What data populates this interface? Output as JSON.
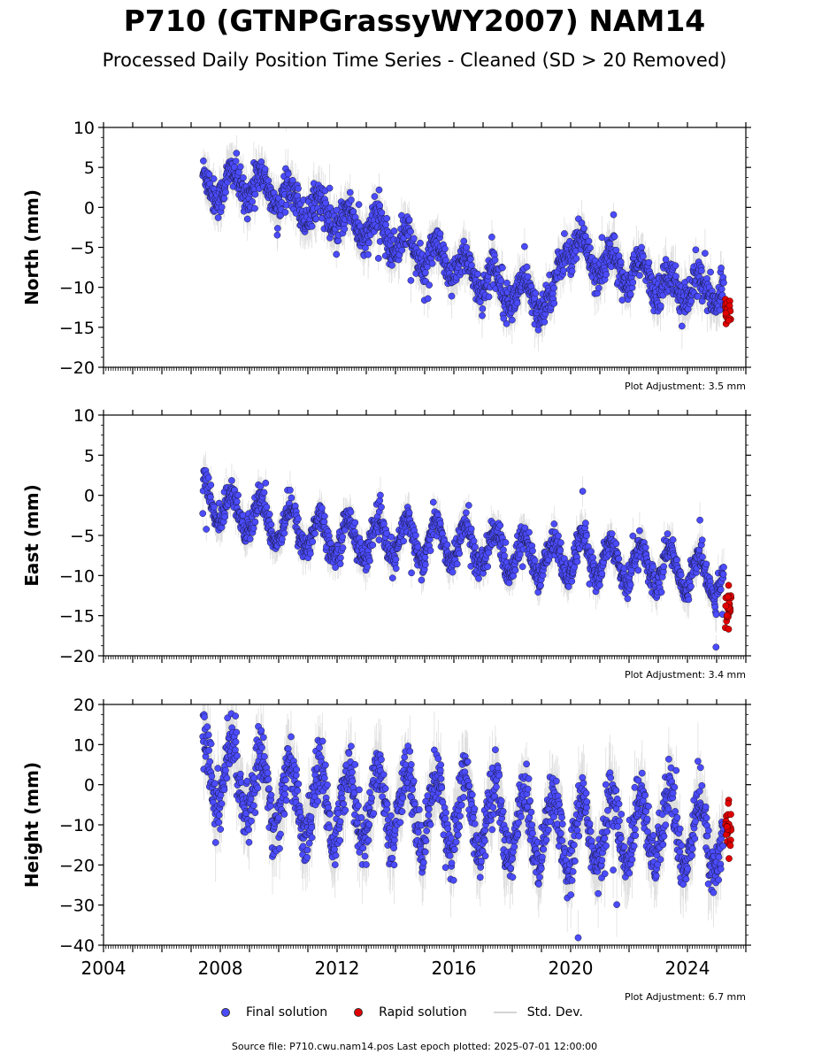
{
  "chart_data": {
    "type": "scatter",
    "title": "P710 (GTNPGrassyWY2007) NAM14",
    "subtitle": "Processed Daily Position Time Series - Cleaned (SD > 20 Removed)",
    "colors": {
      "final": "#4b4bff",
      "rapid": "#e00000",
      "stddev": "#b8b8b8",
      "edge": "#1a1a40"
    },
    "xlim": [
      2004,
      2026
    ],
    "x_ticks": [
      2004,
      2008,
      2012,
      2016,
      2020,
      2024
    ],
    "x_tick_labels": [
      "2004",
      "2008",
      "2012",
      "2016",
      "2020",
      "2024"
    ],
    "panels": [
      {
        "ylabel": "North (mm)",
        "ylim": [
          -20,
          10
        ],
        "y_ticks": [
          10,
          5,
          0,
          -5,
          -10,
          -15,
          -20
        ],
        "y_tick_labels": [
          "10",
          "5",
          "0",
          "−5",
          "−10",
          "−15",
          "−20"
        ],
        "adjustment": "Plot Adjustment: 3.5 mm",
        "trend": [
          [
            2007.4,
            2.5
          ],
          [
            2009.0,
            3.0
          ],
          [
            2010.5,
            1.0
          ],
          [
            2012.0,
            -1.5
          ],
          [
            2013.5,
            -3.0
          ],
          [
            2015.0,
            -6.0
          ],
          [
            2016.5,
            -8.0
          ],
          [
            2018.0,
            -10.5
          ],
          [
            2019.4,
            -12.0
          ],
          [
            2019.8,
            -4.0
          ],
          [
            2020.6,
            -6.0
          ],
          [
            2021.5,
            -7.5
          ],
          [
            2022.5,
            -8.5
          ],
          [
            2023.5,
            -10.0
          ],
          [
            2025.2,
            -10.5
          ]
        ],
        "seasonal_amp": 1.8,
        "noise": 1.1,
        "rapid": {
          "start": 2025.3,
          "end": 2025.5,
          "center": -13.0,
          "spread": 0.8
        }
      },
      {
        "ylabel": "East (mm)",
        "ylim": [
          -20,
          10
        ],
        "y_ticks": [
          10,
          5,
          0,
          -5,
          -10,
          -15,
          -20
        ],
        "y_tick_labels": [
          "10",
          "5",
          "0",
          "−5",
          "−10",
          "−15",
          "−20"
        ],
        "adjustment": "Plot Adjustment: 3.4 mm",
        "trend": [
          [
            2007.4,
            0.0
          ],
          [
            2008.5,
            -2.0
          ],
          [
            2010.0,
            -3.5
          ],
          [
            2011.5,
            -5.0
          ],
          [
            2013.0,
            -5.5
          ],
          [
            2014.5,
            -5.5
          ],
          [
            2016.0,
            -6.0
          ],
          [
            2017.5,
            -7.0
          ],
          [
            2019.0,
            -8.0
          ],
          [
            2020.5,
            -7.5
          ],
          [
            2022.0,
            -8.5
          ],
          [
            2023.5,
            -9.0
          ],
          [
            2025.2,
            -10.5
          ]
        ],
        "seasonal_amp": 2.4,
        "noise": 0.9,
        "rapid": {
          "start": 2025.3,
          "end": 2025.5,
          "center": -14.0,
          "spread": 1.0
        }
      },
      {
        "ylabel": "Height (mm)",
        "ylim": [
          -40,
          20
        ],
        "y_ticks": [
          20,
          10,
          0,
          -10,
          -20,
          -30,
          -40
        ],
        "y_tick_labels": [
          "20",
          "10",
          "0",
          "−10",
          "−20",
          "−30",
          "−40"
        ],
        "adjustment": "Plot Adjustment: 6.7 mm",
        "trend": [
          [
            2007.4,
            5.0
          ],
          [
            2009.0,
            0.0
          ],
          [
            2011.0,
            -5.0
          ],
          [
            2013.0,
            -5.0
          ],
          [
            2015.0,
            -6.0
          ],
          [
            2017.0,
            -8.0
          ],
          [
            2019.0,
            -12.0
          ],
          [
            2021.0,
            -12.0
          ],
          [
            2023.0,
            -10.0
          ],
          [
            2025.2,
            -14.0
          ]
        ],
        "seasonal_amp": 9.0,
        "noise": 3.5,
        "rapid": {
          "start": 2025.3,
          "end": 2025.5,
          "center": -11.0,
          "spread": 3.0
        }
      }
    ],
    "legend": {
      "final": "Final solution",
      "rapid": "Rapid solution",
      "stddev": "Std. Dev."
    },
    "source_note": "Source file: P710.cwu.nam14.pos  Last epoch plotted: 2025-07-01 12:00:00"
  }
}
